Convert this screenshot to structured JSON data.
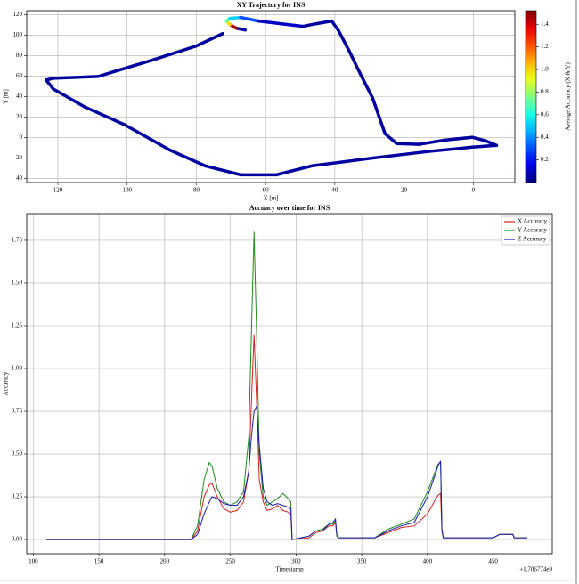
{
  "chart_data": [
    {
      "type": "scatter",
      "title": "XY Trajectory for INS",
      "xlabel": "X [m]",
      "ylabel": "Y [m]",
      "x": [
        65.9,
        68.5,
        70.3,
        71.3,
        70.3,
        67.2,
        62.1,
        49.2,
        45.3,
        40.9,
        38.9,
        35.8,
        32.4,
        29.1,
        25.5,
        22.1,
        15.7,
        8.0,
        0.3,
        -3.6,
        -6.7,
        0.3,
        13.1,
        28.6,
        46.6,
        56.9,
        67.2,
        77.5,
        87.8,
        100.7,
        112.3,
        121.3,
        123.4,
        121.3,
        108.4,
        93.0,
        80.1,
        72.4
      ],
      "y": [
        105.1,
        106.9,
        110.4,
        113.9,
        116.5,
        117.4,
        113.9,
        108.7,
        111.3,
        113.9,
        104.3,
        84.2,
        60.6,
        38.7,
        3.7,
        -5.9,
        -6.7,
        -2.4,
        0.2,
        -3.3,
        -7.7,
        -9.4,
        -13.7,
        -19.9,
        -27.7,
        -36.5,
        -36.5,
        -27.7,
        -12.0,
        12.5,
        30.0,
        47.4,
        56.2,
        57.9,
        59.7,
        75.4,
        89.4,
        101.6
      ],
      "c": [
        0.05,
        1.45,
        1.0,
        0.7,
        0.5,
        0.3,
        0.1,
        0.05,
        0.05,
        0.05,
        0.05,
        0.05,
        0.05,
        0.05,
        0.05,
        0.05,
        0.05,
        0.05,
        0.05,
        0.05,
        0.05,
        0.05,
        0.05,
        0.05,
        0.05,
        0.05,
        0.05,
        0.05,
        0.05,
        0.05,
        0.05,
        0.05,
        0.05,
        0.05,
        0.05,
        0.05,
        0.05,
        0.05
      ],
      "colormap": "jet",
      "colorbar_label": "Average Accuracy (X & Y)",
      "clim": [
        0,
        1.52
      ],
      "cticks": [
        0.2,
        0.4,
        0.6,
        0.8,
        {
          "value": 1,
          "label": "1.0"
        },
        1.2,
        1.4
      ],
      "xlim": [
        129,
        -12
      ],
      "xticks": [
        120,
        100,
        80,
        60,
        40,
        20,
        0
      ],
      "ylim": [
        -44,
        124
      ],
      "yticks": [
        {
          "value": -40,
          "label": "40"
        },
        {
          "value": -20,
          "label": "20"
        },
        0,
        20,
        40,
        60,
        80,
        100,
        120
      ],
      "grid": true
    },
    {
      "type": "line",
      "title": "Accuacy over time for INS",
      "xlabel": "Timestamp",
      "ylabel": "Accuracy",
      "x_offset_label": "+1.706774e9",
      "x": [
        110,
        220,
        225,
        230,
        234,
        236,
        240,
        245,
        250,
        255,
        260,
        264,
        266,
        268,
        270,
        272,
        275,
        278,
        282,
        286,
        290,
        294,
        296,
        297,
        310,
        315,
        320,
        325,
        328,
        330,
        331,
        332,
        360,
        370,
        380,
        390,
        400,
        405,
        408,
        410,
        411,
        412,
        450,
        455,
        465,
        466,
        476
      ],
      "series": [
        {
          "name": "X Accuracy",
          "color": "#d62020",
          "values": [
            0,
            0,
            0.05,
            0.25,
            0.32,
            0.33,
            0.25,
            0.18,
            0.16,
            0.17,
            0.22,
            0.4,
            0.8,
            1.2,
            0.8,
            0.35,
            0.22,
            0.17,
            0.18,
            0.2,
            0.17,
            0.16,
            0.15,
            0,
            0.01,
            0.04,
            0.05,
            0.08,
            0.08,
            0.1,
            0.02,
            0.01,
            0.01,
            0.04,
            0.07,
            0.08,
            0.15,
            0.22,
            0.26,
            0.27,
            0.05,
            0.01,
            0.01,
            0.03,
            0.03,
            0.01,
            0.01
          ]
        },
        {
          "name": "Y Accuracy",
          "color": "#1e8a1e",
          "values": [
            0,
            0,
            0.08,
            0.35,
            0.45,
            0.43,
            0.3,
            0.22,
            0.2,
            0.22,
            0.28,
            0.6,
            1.2,
            1.8,
            1.2,
            0.5,
            0.25,
            0.2,
            0.22,
            0.24,
            0.27,
            0.24,
            0.22,
            0,
            0.02,
            0.05,
            0.06,
            0.09,
            0.09,
            0.11,
            0.02,
            0.01,
            0.01,
            0.06,
            0.09,
            0.12,
            0.28,
            0.38,
            0.44,
            0.45,
            0.06,
            0.01,
            0.01,
            0.03,
            0.03,
            0.01,
            0.01
          ]
        },
        {
          "name": "Z Accuracy",
          "color": "#1a1ab0",
          "values": [
            0,
            0,
            0.03,
            0.15,
            0.22,
            0.25,
            0.24,
            0.21,
            0.2,
            0.2,
            0.25,
            0.4,
            0.6,
            0.75,
            0.78,
            0.55,
            0.3,
            0.22,
            0.2,
            0.21,
            0.2,
            0.19,
            0.18,
            0,
            0.02,
            0.05,
            0.05,
            0.09,
            0.1,
            0.12,
            0.03,
            0.01,
            0.01,
            0.05,
            0.08,
            0.1,
            0.25,
            0.36,
            0.43,
            0.46,
            0.06,
            0.01,
            0.01,
            0.03,
            0.03,
            0.01,
            0.01
          ]
        }
      ],
      "xlim": [
        95,
        495
      ],
      "xticks": [
        100,
        150,
        200,
        250,
        300,
        350,
        400,
        450
      ],
      "ylim": [
        -0.083,
        1.906
      ],
      "yticks": [
        {
          "value": 0,
          "label": "0.00"
        },
        {
          "value": 0.25,
          "label": "0.25"
        },
        {
          "value": 0.5,
          "label": "0.50"
        },
        {
          "value": 0.75,
          "label": "0.75"
        },
        {
          "value": 1,
          "label": "1.00"
        },
        {
          "value": 1.25,
          "label": "1.25"
        },
        {
          "value": 1.5,
          "label": "1.50"
        },
        {
          "value": 1.75,
          "label": "1.75"
        }
      ],
      "grid": true,
      "legend": "upper right"
    }
  ]
}
